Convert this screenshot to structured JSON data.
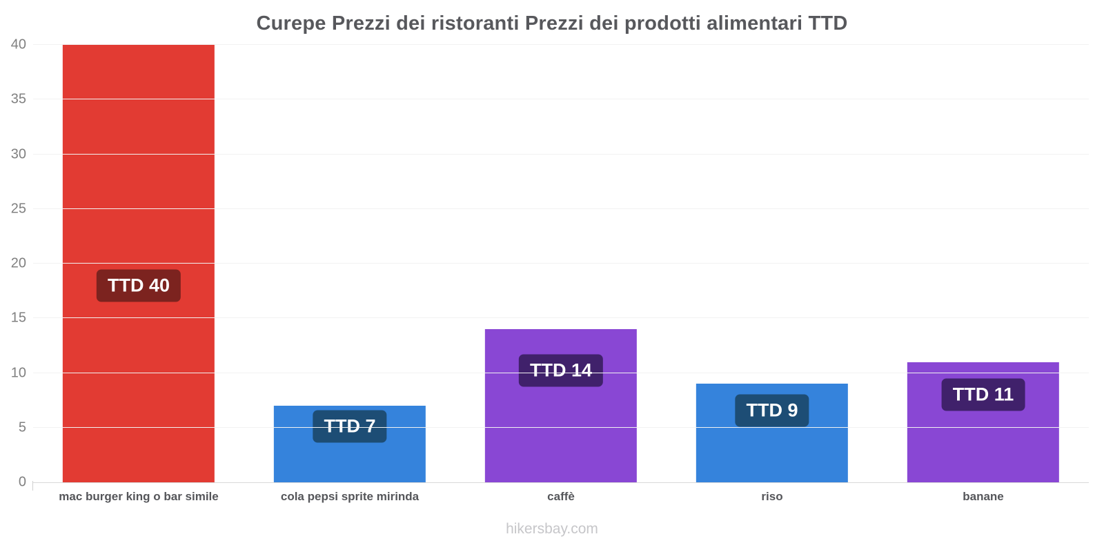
{
  "chart_data": {
    "type": "bar",
    "title": "Curepe Prezzi dei ristoranti Prezzi dei prodotti alimentari TTD",
    "xlabel": "",
    "ylabel": "",
    "ylim": [
      0,
      40
    ],
    "ytick_step": 5,
    "ytick_labels": [
      "0",
      "5",
      "10",
      "15",
      "20",
      "25",
      "30",
      "35",
      "40"
    ],
    "grid": true,
    "legend": "none",
    "categories": [
      "mac burger king o bar simile",
      "cola pepsi sprite mirinda",
      "caffè",
      "riso",
      "banane"
    ],
    "values": [
      40,
      7,
      14,
      9,
      11
    ],
    "bars": [
      {
        "category": "mac burger king o bar simile",
        "value": 40,
        "value_label": "TTD 40",
        "color": "#e23b33",
        "label_bg": "#7c231f"
      },
      {
        "category": "cola pepsi sprite mirinda",
        "value": 7,
        "value_label": "TTD 7",
        "color": "#3583dc",
        "label_bg": "#1d4d75"
      },
      {
        "category": "caffè",
        "value": 14,
        "value_label": "TTD 14",
        "color": "#8947d4",
        "label_bg": "#40216b"
      },
      {
        "category": "riso",
        "value": 9,
        "value_label": "TTD 9",
        "color": "#3583dc",
        "label_bg": "#1d4d75"
      },
      {
        "category": "banane",
        "value": 11,
        "value_label": "TTD 11",
        "color": "#8947d4",
        "label_bg": "#40216b"
      }
    ]
  },
  "footer": {
    "text": "hikersbay.com"
  }
}
